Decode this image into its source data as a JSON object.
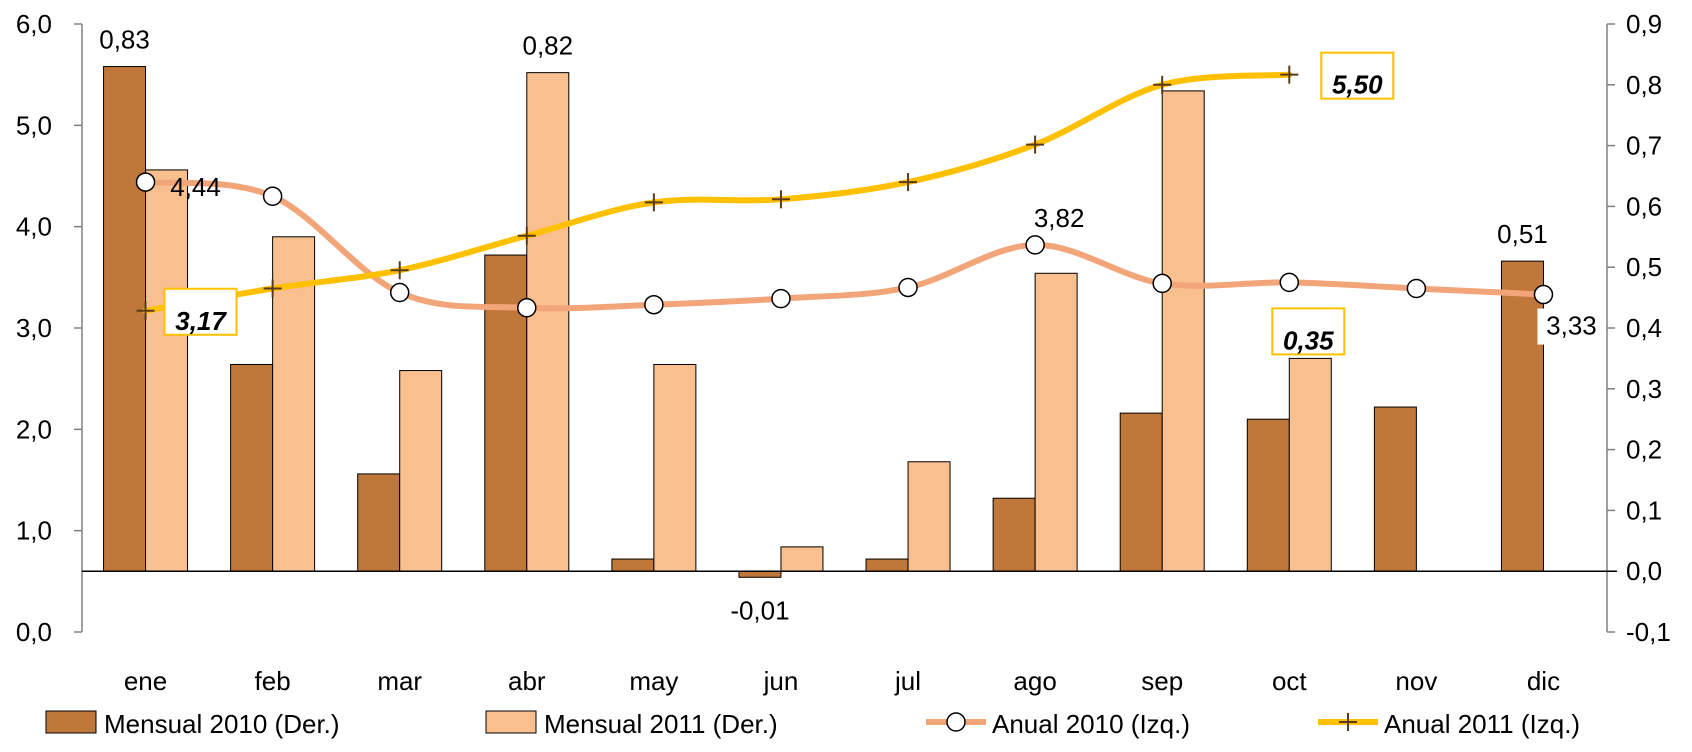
{
  "chart_data": {
    "type": "bar",
    "categories": [
      "ene",
      "feb",
      "mar",
      "abr",
      "may",
      "jun",
      "jul",
      "ago",
      "sep",
      "oct",
      "nov",
      "dic"
    ],
    "left_axis": {
      "min": 0.0,
      "max": 6.0,
      "step": 1.0,
      "ticks": [
        "0,0",
        "1,0",
        "2,0",
        "3,0",
        "4,0",
        "5,0",
        "6,0"
      ]
    },
    "right_axis": {
      "min": -0.1,
      "max": 0.9,
      "step": 0.1,
      "ticks": [
        "-0,1",
        "0,0",
        "0,1",
        "0,2",
        "0,3",
        "0,4",
        "0,5",
        "0,6",
        "0,7",
        "0,8",
        "0,9"
      ]
    },
    "series": [
      {
        "name": "Mensual 2010 (Der.)",
        "type": "bar",
        "axis": "right",
        "color": "#C0773A",
        "values": [
          0.83,
          0.34,
          0.16,
          0.52,
          0.02,
          -0.01,
          0.02,
          0.12,
          0.26,
          0.25,
          0.27,
          0.51
        ]
      },
      {
        "name": "Mensual 2011 (Der.)",
        "type": "bar",
        "axis": "right",
        "color": "#F9BF8F",
        "values": [
          0.66,
          0.55,
          0.33,
          0.82,
          0.34,
          0.04,
          0.18,
          0.49,
          0.79,
          0.35,
          null,
          null
        ]
      },
      {
        "name": "Anual 2010 (Izq.)",
        "type": "line",
        "axis": "left",
        "color": "#F3A57A",
        "marker": "circle",
        "values": [
          4.44,
          4.3,
          3.35,
          3.2,
          3.23,
          3.29,
          3.4,
          3.82,
          3.44,
          3.45,
          3.39,
          3.33
        ]
      },
      {
        "name": "Anual 2011 (Izq.)",
        "type": "line",
        "axis": "left",
        "color": "#FFC000",
        "marker": "plus",
        "values": [
          3.17,
          3.39,
          3.57,
          3.91,
          4.24,
          4.27,
          4.44,
          4.81,
          5.4,
          5.5,
          null,
          null
        ]
      }
    ],
    "data_labels": [
      {
        "series": 0,
        "index": 0,
        "text": "0,83",
        "style": "plain"
      },
      {
        "series": 1,
        "index": 3,
        "text": "0,82",
        "style": "plain"
      },
      {
        "series": 0,
        "index": 5,
        "text": "-0,01",
        "style": "plain"
      },
      {
        "series": 0,
        "index": 11,
        "text": "0,51",
        "style": "plain"
      },
      {
        "series": 1,
        "index": 9,
        "text": "0,35",
        "style": "boxed"
      },
      {
        "series": 2,
        "index": 0,
        "text": "4,44",
        "style": "plain"
      },
      {
        "series": 2,
        "index": 7,
        "text": "3,82",
        "style": "plain"
      },
      {
        "series": 2,
        "index": 11,
        "text": "3,33",
        "style": "plain"
      },
      {
        "series": 3,
        "index": 0,
        "text": "3,17",
        "style": "boxed"
      },
      {
        "series": 3,
        "index": 9,
        "text": "5,50",
        "style": "boxed"
      }
    ],
    "legend_position": "bottom",
    "grid": false
  }
}
